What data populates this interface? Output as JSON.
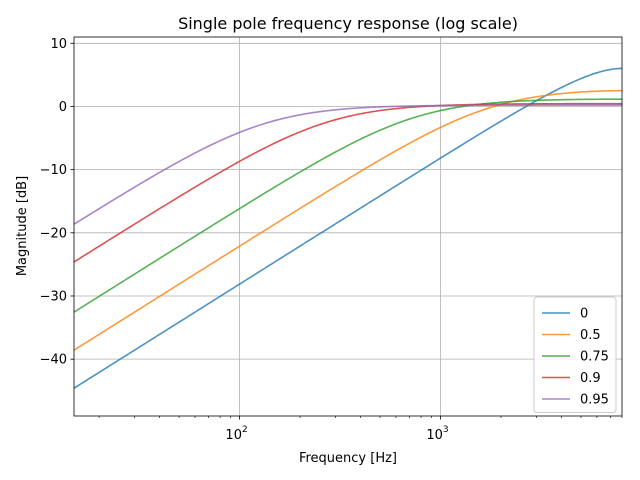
{
  "chart_data": {
    "type": "line",
    "title": "Single pole frequency response (log scale)",
    "xlabel": "Frequency [Hz]",
    "ylabel": "Magnitude [dB]",
    "xscale": "log",
    "xlim": [
      15,
      8000
    ],
    "ylim": [
      -49,
      11
    ],
    "grid": true,
    "legend_position": "bottom-right",
    "x_ticks": [
      {
        "value": 100,
        "base": "10",
        "exp": "2"
      },
      {
        "value": 1000,
        "base": "10",
        "exp": "3"
      }
    ],
    "y_ticks": [
      10,
      0,
      -10,
      -20,
      -30,
      -40
    ],
    "y_tick_labels": [
      "10",
      "0",
      "−10",
      "−20",
      "−30",
      "−40"
    ],
    "nyquist_hz": 8000,
    "series": [
      {
        "name": "0",
        "pole": 0,
        "color": "#1f77b4"
      },
      {
        "name": "0.5",
        "pole": 0.5,
        "color": "#ff7f0e"
      },
      {
        "name": "0.75",
        "pole": 0.75,
        "color": "#2ca02c"
      },
      {
        "name": "0.9",
        "pole": 0.9,
        "color": "#d62728"
      },
      {
        "name": "0.95",
        "pole": 0.95,
        "color": "#9467bd"
      }
    ]
  }
}
